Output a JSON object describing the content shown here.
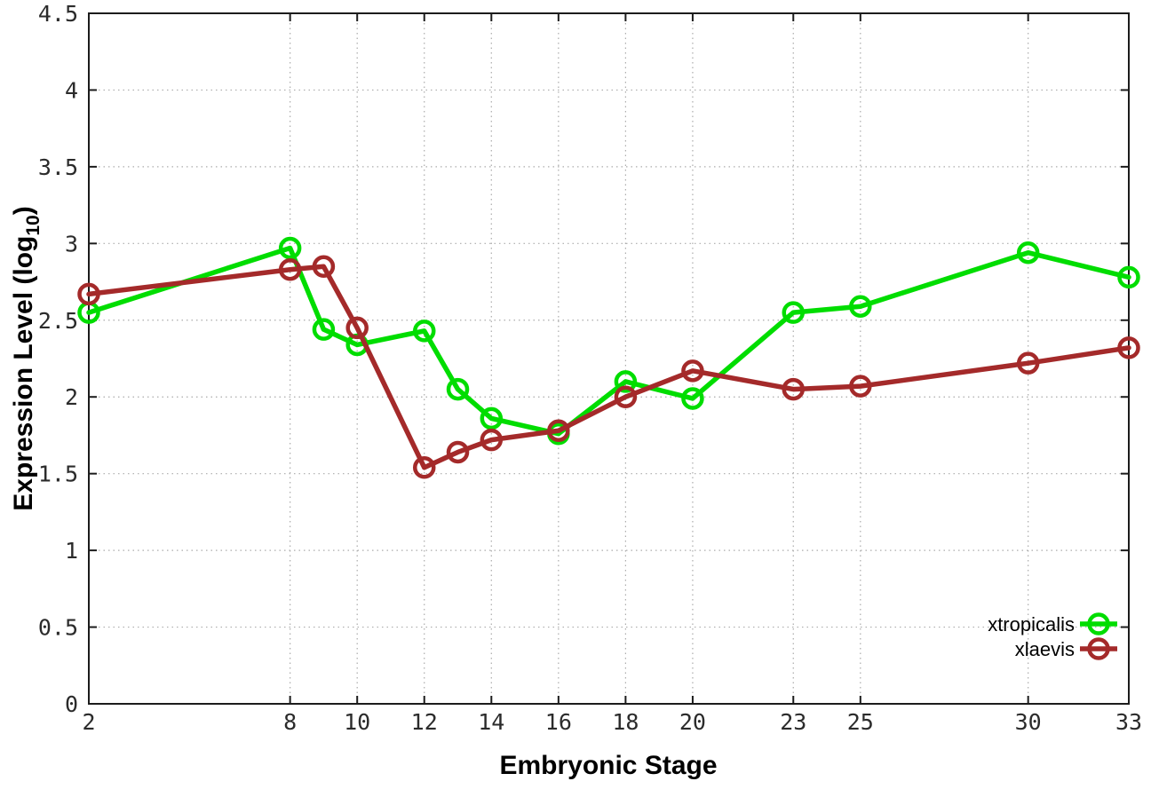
{
  "chart_data": {
    "type": "line",
    "title": "",
    "xlabel": "Embryonic Stage",
    "ylabel": "Expression Level (log10)",
    "ylabel_parts": {
      "pre": "Expression Level (log",
      "sub": "10",
      "post": ")"
    },
    "x": [
      2,
      8,
      9,
      10,
      12,
      13,
      14,
      16,
      18,
      20,
      23,
      25,
      30,
      33
    ],
    "series": [
      {
        "name": "xtropicalis",
        "color": "#00dd00",
        "values": [
          2.55,
          2.97,
          2.44,
          2.34,
          2.43,
          2.05,
          1.86,
          1.76,
          2.1,
          1.99,
          2.55,
          2.59,
          2.94,
          2.78
        ]
      },
      {
        "name": "xlaevis",
        "color": "#a42a2a",
        "values": [
          2.67,
          2.83,
          2.85,
          2.45,
          1.54,
          1.64,
          1.72,
          1.78,
          2.0,
          2.17,
          2.05,
          2.07,
          2.22,
          2.32
        ]
      }
    ],
    "x_ticks": [
      2,
      8,
      10,
      12,
      14,
      16,
      18,
      20,
      23,
      25,
      30,
      33
    ],
    "y_ticks": [
      0,
      0.5,
      1,
      1.5,
      2,
      2.5,
      3,
      3.5,
      4,
      4.5
    ],
    "xlim": [
      2,
      33
    ],
    "ylim": [
      0,
      4.5
    ],
    "grid": true,
    "legend_position": "inside-bottom-right"
  },
  "style": {
    "border_color": "#1c1c1c",
    "grid_color": "#ababab",
    "tick_label_color": "#2b2b2b",
    "axis_title_color": "#000000",
    "legend_text_color": "#000000",
    "background": "#ffffff"
  }
}
